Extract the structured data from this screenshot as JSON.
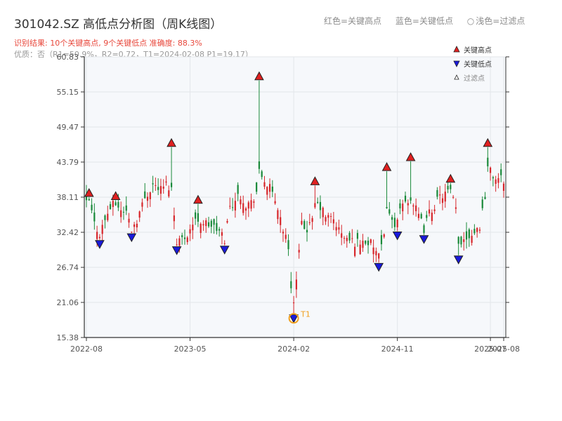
{
  "header": {
    "title": "301042.SZ 高低点分析图（周K线图）",
    "result": "识别结果: 10个关键高点, 9个关键低点   准确度: 88.3%",
    "quality": "优质：否（R1=50.9%，R2=0.72，T1=2024-02-08 P1=19.17）"
  },
  "top_legend": {
    "red": "红色=关键高点",
    "blue": "蓝色=关键低点",
    "light": "浅色=过滤点"
  },
  "colors": {
    "up": "#d7262b",
    "down": "#1a8a3a",
    "high_marker": "#e02020",
    "low_marker": "#1a1adb",
    "t1": "#f0a020",
    "plot_bg": "#f6f8fb",
    "grid": "#e3e6ea",
    "axis": "#333333"
  },
  "chart_data": {
    "type": "candlestick",
    "title": "301042.SZ 高低点分析图（周K线图）",
    "ylim": [
      15.38,
      60.83
    ],
    "y_ticks": [
      "15.38",
      "21.06",
      "26.74",
      "32.42",
      "38.11",
      "43.79",
      "49.47",
      "55.15",
      "60.83"
    ],
    "x_ticks": [
      "2022-08",
      "2023-05",
      "2024-02",
      "2024-11",
      "2025-07",
      "2025-08"
    ],
    "x_tick_weeks": [
      0,
      39,
      78,
      117,
      152,
      157
    ],
    "week_count": 158,
    "grid": true,
    "legend": {
      "position": "top-right",
      "entries": [
        {
          "label": "关键高点",
          "marker": "triangle-up",
          "color": "#e02020"
        },
        {
          "label": "关键低点",
          "marker": "triangle-down",
          "color": "#1a1adb"
        },
        {
          "label": "过滤点",
          "marker": "triangle-up-small",
          "color": "#ffffff"
        }
      ]
    },
    "keypoints": {
      "highs": [
        {
          "week": 1,
          "price": 38.1
        },
        {
          "week": 11,
          "price": 37.6
        },
        {
          "week": 32,
          "price": 46.2
        },
        {
          "week": 42,
          "price": 37.0
        },
        {
          "week": 65,
          "price": 57.0
        },
        {
          "week": 86,
          "price": 40.0
        },
        {
          "week": 113,
          "price": 42.3
        },
        {
          "week": 122,
          "price": 43.9
        },
        {
          "week": 137,
          "price": 40.4
        },
        {
          "week": 151,
          "price": 46.2
        }
      ],
      "lows": [
        {
          "week": 5,
          "price": 31.2
        },
        {
          "week": 17,
          "price": 32.3
        },
        {
          "week": 34,
          "price": 30.2
        },
        {
          "week": 52,
          "price": 30.3
        },
        {
          "week": 78,
          "price": 19.17
        },
        {
          "week": 110,
          "price": 27.5
        },
        {
          "week": 117,
          "price": 32.6
        },
        {
          "week": 127,
          "price": 32.0
        },
        {
          "week": 140,
          "price": 28.7
        }
      ],
      "t1": {
        "label": "T1",
        "date": "2024-02-08",
        "week": 78,
        "price": 19.17
      }
    },
    "weekly_path": [
      [
        0,
        37.0
      ],
      [
        1,
        37.5
      ],
      [
        3,
        33.8
      ],
      [
        5,
        32.2
      ],
      [
        7,
        34.5
      ],
      [
        9,
        36.4
      ],
      [
        11,
        37.1
      ],
      [
        13,
        36.0
      ],
      [
        15,
        35.8
      ],
      [
        17,
        33.0
      ],
      [
        19,
        34.5
      ],
      [
        22,
        38.0
      ],
      [
        25,
        40.2
      ],
      [
        28,
        39.4
      ],
      [
        30,
        40.2
      ],
      [
        32,
        39.5
      ],
      [
        34,
        31.2
      ],
      [
        36,
        31.3
      ],
      [
        38,
        32.2
      ],
      [
        40,
        33.8
      ],
      [
        42,
        34.5
      ],
      [
        44,
        34.0
      ],
      [
        47,
        33.5
      ],
      [
        50,
        32.5
      ],
      [
        52,
        31.3
      ],
      [
        54,
        36.5
      ],
      [
        56,
        37.8
      ],
      [
        58,
        38.5
      ],
      [
        60,
        37.0
      ],
      [
        62,
        37.2
      ],
      [
        64,
        39.0
      ],
      [
        65,
        42.0
      ],
      [
        67,
        40.8
      ],
      [
        69,
        39.5
      ],
      [
        72,
        36.5
      ],
      [
        74,
        33.0
      ],
      [
        76,
        30.0
      ],
      [
        77,
        24.0
      ],
      [
        78,
        21.0
      ],
      [
        79,
        24.5
      ],
      [
        81,
        33.5
      ],
      [
        83,
        33.0
      ],
      [
        85,
        34.0
      ],
      [
        86,
        37.0
      ],
      [
        88,
        36.5
      ],
      [
        90,
        35.0
      ],
      [
        93,
        34.5
      ],
      [
        96,
        32.0
      ],
      [
        99,
        31.0
      ],
      [
        102,
        30.8
      ],
      [
        105,
        31.0
      ],
      [
        108,
        30.2
      ],
      [
        110,
        28.3
      ],
      [
        112,
        31.5
      ],
      [
        113,
        37.0
      ],
      [
        115,
        34.0
      ],
      [
        117,
        34.0
      ],
      [
        119,
        37.0
      ],
      [
        122,
        38.0
      ],
      [
        124,
        36.0
      ],
      [
        126,
        34.0
      ],
      [
        127,
        33.0
      ],
      [
        129,
        35.5
      ],
      [
        132,
        37.5
      ],
      [
        134,
        38.5
      ],
      [
        137,
        39.0
      ],
      [
        139,
        36.0
      ],
      [
        140,
        30.5
      ],
      [
        142,
        31.5
      ],
      [
        144,
        32.0
      ],
      [
        146,
        32.5
      ],
      [
        148,
        33.5
      ],
      [
        150,
        38.5
      ],
      [
        151,
        43.0
      ],
      [
        153,
        41.5
      ],
      [
        155,
        41.0
      ],
      [
        157,
        41.0
      ]
    ]
  }
}
